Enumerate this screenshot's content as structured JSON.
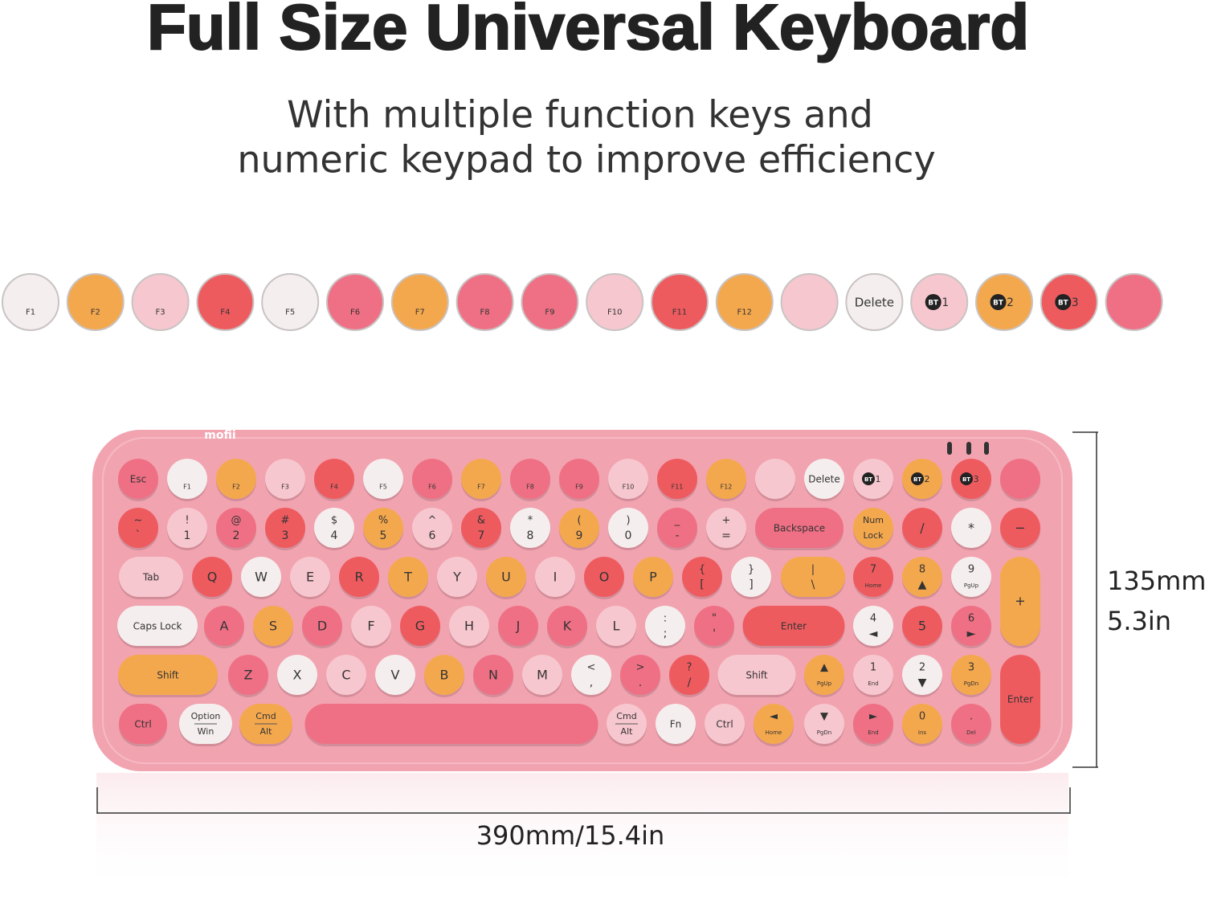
{
  "header": {
    "title": "Full Size Universal Keyboard",
    "subtitle": [
      "With multiple function keys and",
      "numeric keypad to improve efficiency"
    ]
  },
  "keyboard": {
    "brand": "mofii",
    "body_color": "#f2a3b0",
    "rows": [
      [
        {
          "label": "Esc",
          "color": "#ef7085"
        },
        {
          "bottom": "F1",
          "color": "#f4efee"
        },
        {
          "bottom": "F2",
          "color": "#f4a84e"
        },
        {
          "bottom": "F3",
          "color": "#f7c7cf"
        },
        {
          "bottom": "F4",
          "color": "#ee5b5f"
        },
        {
          "bottom": "F5",
          "color": "#f4efee"
        },
        {
          "bottom": "F6",
          "color": "#ef7085"
        },
        {
          "bottom": "F7",
          "color": "#f4a84e"
        },
        {
          "bottom": "F8",
          "color": "#ef7085"
        },
        {
          "bottom": "F9",
          "color": "#ef7085"
        },
        {
          "bottom": "F10",
          "color": "#f7c7cf"
        },
        {
          "bottom": "F11",
          "color": "#ee5b5f"
        },
        {
          "bottom": "F12",
          "color": "#f4a84e"
        },
        {
          "color": "#f7c7cf"
        },
        {
          "label": "Delete",
          "color": "#f4efee"
        },
        {
          "badge": "BT",
          "label": "1",
          "color": "#f7c7cf"
        },
        {
          "badge": "BT",
          "label": "2",
          "color": "#f4a84e"
        },
        {
          "badge": "BT",
          "label": "3",
          "color": "#ee5b5f"
        },
        {
          "color": "#ef7085"
        }
      ],
      [
        {
          "top": "~",
          "bottom": "`",
          "color": "#ee5b5f"
        },
        {
          "top": "!",
          "bottom": "1",
          "color": "#f7c7cf"
        },
        {
          "top": "@",
          "bottom": "2",
          "color": "#ef7085"
        },
        {
          "top": "#",
          "bottom": "3",
          "color": "#ee5b5f"
        },
        {
          "top": "$",
          "bottom": "4",
          "color": "#f4efee"
        },
        {
          "top": "%",
          "bottom": "5",
          "color": "#f4a84e"
        },
        {
          "top": "^",
          "bottom": "6",
          "color": "#f7c7cf"
        },
        {
          "top": "&",
          "bottom": "7",
          "color": "#ee5b5f"
        },
        {
          "top": "*",
          "bottom": "8",
          "color": "#f4efee"
        },
        {
          "top": "(",
          "bottom": "9",
          "color": "#f4a84e"
        },
        {
          "top": ")",
          "bottom": "0",
          "color": "#f4efee"
        },
        {
          "top": "_",
          "bottom": "-",
          "color": "#ef7085"
        },
        {
          "top": "+",
          "bottom": "=",
          "color": "#f7c7cf"
        },
        {
          "label": "Backspace",
          "color": "#ef7085"
        },
        {
          "top": "Num",
          "bottom": "Lock",
          "color": "#f4a84e"
        },
        {
          "label": "/",
          "color": "#ee5b5f"
        },
        {
          "label": "*",
          "color": "#f4efee"
        },
        {
          "label": "−",
          "color": "#ee5b5f"
        }
      ],
      [
        {
          "label": "Tab",
          "color": "#f7c7cf"
        },
        {
          "label": "Q",
          "color": "#ee5b5f"
        },
        {
          "label": "W",
          "color": "#f4efee"
        },
        {
          "label": "E",
          "color": "#f7c7cf"
        },
        {
          "label": "R",
          "color": "#ee5b5f"
        },
        {
          "label": "T",
          "color": "#f4a84e"
        },
        {
          "label": "Y",
          "color": "#f7c7cf"
        },
        {
          "label": "U",
          "color": "#f4a84e"
        },
        {
          "label": "I",
          "color": "#f7c7cf"
        },
        {
          "label": "O",
          "color": "#ee5b5f"
        },
        {
          "label": "P",
          "color": "#f4a84e"
        },
        {
          "top": "{",
          "bottom": "[",
          "color": "#ee5b5f"
        },
        {
          "top": "}",
          "bottom": "]",
          "color": "#f4efee"
        },
        {
          "top": "|",
          "bottom": "\\",
          "color": "#f4a84e"
        },
        {
          "top": "7",
          "bottom": "Home",
          "color": "#ee5b5f"
        },
        {
          "top": "8",
          "bottom": "▲",
          "color": "#f4a84e"
        },
        {
          "top": "9",
          "bottom": "PgUp",
          "color": "#f4efee"
        },
        {
          "label": "+",
          "color": "#f4a84e"
        }
      ],
      [
        {
          "label": "Caps Lock",
          "color": "#f4efee"
        },
        {
          "label": "A",
          "color": "#ef7085"
        },
        {
          "label": "S",
          "color": "#f4a84e"
        },
        {
          "label": "D",
          "color": "#ef7085"
        },
        {
          "label": "F",
          "color": "#f7c7cf"
        },
        {
          "label": "G",
          "color": "#ee5b5f"
        },
        {
          "label": "H",
          "color": "#f7c7cf"
        },
        {
          "label": "J",
          "color": "#ef7085"
        },
        {
          "label": "K",
          "color": "#ef7085"
        },
        {
          "label": "L",
          "color": "#f7c7cf"
        },
        {
          "top": ":",
          "bottom": ";",
          "color": "#f4efee"
        },
        {
          "top": "\"",
          "bottom": "'",
          "color": "#ef7085"
        },
        {
          "label": "Enter",
          "color": "#ee5b5f"
        },
        {
          "top": "4",
          "bottom": "◄",
          "color": "#f4efee"
        },
        {
          "label": "5",
          "color": "#ee5b5f"
        },
        {
          "top": "6",
          "bottom": "►",
          "color": "#ef7085"
        }
      ],
      [
        {
          "label": "Shift",
          "color": "#f4a84e"
        },
        {
          "label": "Z",
          "color": "#ef7085"
        },
        {
          "label": "X",
          "color": "#f4efee"
        },
        {
          "label": "C",
          "color": "#f7c7cf"
        },
        {
          "label": "V",
          "color": "#f4efee"
        },
        {
          "label": "B",
          "color": "#f4a84e"
        },
        {
          "label": "N",
          "color": "#ef7085"
        },
        {
          "label": "M",
          "color": "#f7c7cf"
        },
        {
          "top": "<",
          "bottom": ",",
          "color": "#f4efee"
        },
        {
          "top": ">",
          "bottom": ".",
          "color": "#ef7085"
        },
        {
          "top": "?",
          "bottom": "/",
          "color": "#ee5b5f"
        },
        {
          "label": "Shift",
          "color": "#f7c7cf"
        },
        {
          "top": "▲",
          "bottom": "PgUp",
          "color": "#f4a84e"
        },
        {
          "top": "1",
          "bottom": "End",
          "color": "#f7c7cf"
        },
        {
          "top": "2",
          "bottom": "▼",
          "color": "#f4efee"
        },
        {
          "top": "3",
          "bottom": "PgDn",
          "color": "#f4a84e"
        },
        {
          "label": "Enter",
          "color": "#ee5b5f"
        }
      ],
      [
        {
          "label": "Ctrl",
          "color": "#ef7085"
        },
        {
          "top": "Option",
          "bottom": "Win",
          "color": "#f4efee"
        },
        {
          "top": "Cmd",
          "bottom": "Alt",
          "color": "#f4a84e"
        },
        {
          "color": "#ef7085"
        },
        {
          "top": "Cmd",
          "bottom": "Alt",
          "color": "#f7c7cf"
        },
        {
          "label": "Fn",
          "color": "#f4efee"
        },
        {
          "label": "Ctrl",
          "color": "#f7c7cf"
        },
        {
          "top": "◄",
          "bottom": "Home",
          "color": "#f4a84e"
        },
        {
          "top": "▼",
          "bottom": "PgDn",
          "color": "#f7c7cf"
        },
        {
          "top": "►",
          "bottom": "End",
          "color": "#ef7085"
        },
        {
          "top": "0",
          "bottom": "Ins",
          "color": "#f4a84e"
        },
        {
          "top": ".",
          "bottom": "Del",
          "color": "#ef7085"
        }
      ]
    ]
  },
  "dimensions": {
    "height_mm": "135mm",
    "height_in": "5.3in",
    "width": "390mm/15.4in"
  }
}
